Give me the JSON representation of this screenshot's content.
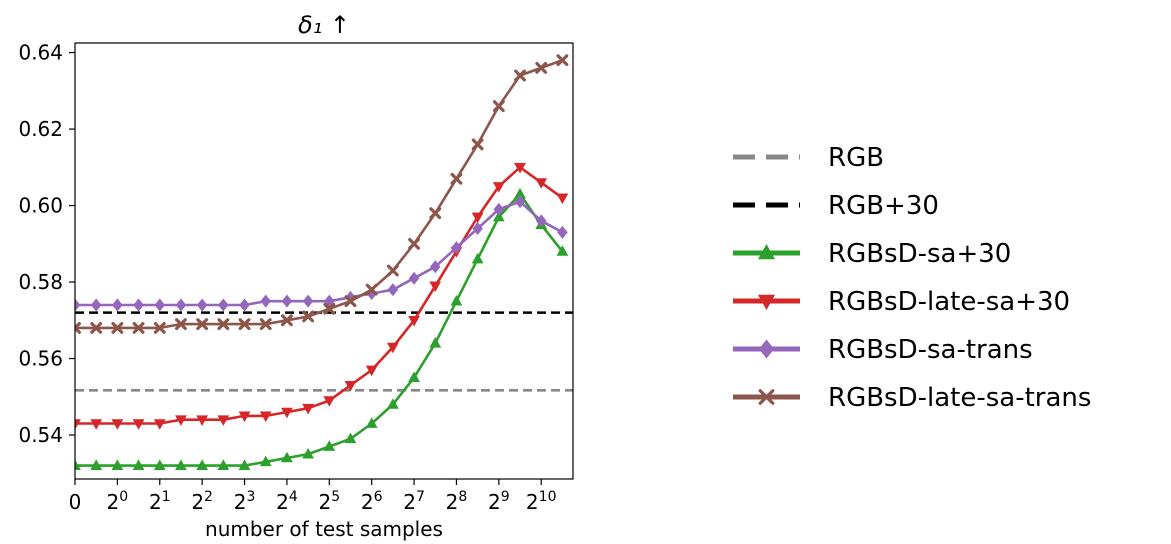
{
  "chart_data": {
    "type": "line",
    "title": "δ₁ ↑",
    "xlabel": "number of test samples",
    "ylabel": "",
    "x_tick_labels": [
      {
        "x": 0,
        "base": "0",
        "exp": ""
      },
      {
        "x": 1,
        "base": "2",
        "exp": "0"
      },
      {
        "x": 2,
        "base": "2",
        "exp": "1"
      },
      {
        "x": 3,
        "base": "2",
        "exp": "2"
      },
      {
        "x": 4,
        "base": "2",
        "exp": "3"
      },
      {
        "x": 5,
        "base": "2",
        "exp": "4"
      },
      {
        "x": 6,
        "base": "2",
        "exp": "5"
      },
      {
        "x": 7,
        "base": "2",
        "exp": "6"
      },
      {
        "x": 8,
        "base": "2",
        "exp": "7"
      },
      {
        "x": 9,
        "base": "2",
        "exp": "8"
      },
      {
        "x": 10,
        "base": "2",
        "exp": "9"
      },
      {
        "x": 11,
        "base": "2",
        "exp": "10"
      }
    ],
    "xlim": [
      0,
      11.75
    ],
    "ylim": [
      0.5285,
      0.6425
    ],
    "y_ticks": [
      0.54,
      0.56,
      0.58,
      0.6,
      0.62,
      0.64
    ],
    "y_tick_labels": [
      "0.54",
      "0.56",
      "0.58",
      "0.60",
      "0.62",
      "0.64"
    ],
    "grid": false,
    "legend_position": "right-outside",
    "series": [
      {
        "name": "RGB",
        "style": "dashed",
        "color": "#888888",
        "marker": "none",
        "y": 0.5517
      },
      {
        "name": "RGB+30",
        "style": "dashed",
        "color": "#000000",
        "marker": "none",
        "y": 0.572
      },
      {
        "name": "RGBsD-sa+30",
        "style": "solid",
        "color": "#2ca02c",
        "marker": "triangle-up",
        "x": [
          0,
          0.5,
          1,
          1.5,
          2,
          2.5,
          3,
          3.5,
          4,
          4.5,
          5,
          5.5,
          6,
          6.5,
          7,
          7.5,
          8,
          8.5,
          9,
          9.5,
          10,
          10.5,
          11,
          11.5
        ],
        "y": [
          0.532,
          0.532,
          0.532,
          0.532,
          0.532,
          0.532,
          0.532,
          0.532,
          0.532,
          0.533,
          0.534,
          0.535,
          0.537,
          0.539,
          0.543,
          0.548,
          0.555,
          0.564,
          0.575,
          0.586,
          0.597,
          0.603,
          0.595,
          0.588
        ]
      },
      {
        "name": "RGBsD-late-sa+30",
        "style": "solid",
        "color": "#d62728",
        "marker": "triangle-down",
        "x": [
          0,
          0.5,
          1,
          1.5,
          2,
          2.5,
          3,
          3.5,
          4,
          4.5,
          5,
          5.5,
          6,
          6.5,
          7,
          7.5,
          8,
          8.5,
          9,
          9.5,
          10,
          10.5,
          11,
          11.5
        ],
        "y": [
          0.543,
          0.543,
          0.543,
          0.543,
          0.543,
          0.544,
          0.544,
          0.544,
          0.545,
          0.545,
          0.546,
          0.547,
          0.549,
          0.553,
          0.557,
          0.563,
          0.57,
          0.579,
          0.588,
          0.597,
          0.605,
          0.61,
          0.606,
          0.602
        ]
      },
      {
        "name": "RGBsD-sa-trans",
        "style": "solid",
        "color": "#9467bd",
        "marker": "diamond",
        "x": [
          0,
          0.5,
          1,
          1.5,
          2,
          2.5,
          3,
          3.5,
          4,
          4.5,
          5,
          5.5,
          6,
          6.5,
          7,
          7.5,
          8,
          8.5,
          9,
          9.5,
          10,
          10.5,
          11,
          11.5
        ],
        "y": [
          0.574,
          0.574,
          0.574,
          0.574,
          0.574,
          0.574,
          0.574,
          0.574,
          0.574,
          0.575,
          0.575,
          0.575,
          0.575,
          0.576,
          0.577,
          0.578,
          0.581,
          0.584,
          0.589,
          0.594,
          0.599,
          0.601,
          0.596,
          0.593
        ]
      },
      {
        "name": "RGBsD-late-sa-trans",
        "style": "solid",
        "color": "#8c564b",
        "marker": "x",
        "x": [
          0,
          0.5,
          1,
          1.5,
          2,
          2.5,
          3,
          3.5,
          4,
          4.5,
          5,
          5.5,
          6,
          6.5,
          7,
          7.5,
          8,
          8.5,
          9,
          9.5,
          10,
          10.5,
          11,
          11.5
        ],
        "y": [
          0.568,
          0.568,
          0.568,
          0.568,
          0.568,
          0.569,
          0.569,
          0.569,
          0.569,
          0.569,
          0.57,
          0.571,
          0.573,
          0.575,
          0.578,
          0.583,
          0.59,
          0.598,
          0.607,
          0.616,
          0.626,
          0.634,
          0.636,
          0.638
        ]
      }
    ]
  }
}
